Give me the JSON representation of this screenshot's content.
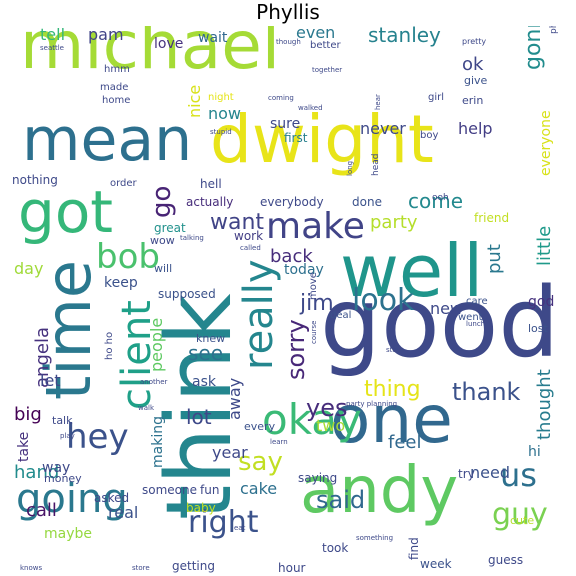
{
  "title": "Phyllis",
  "words": [
    {
      "text": "michael",
      "color": "#a5db36"
    },
    {
      "text": "dwight",
      "color": "#e8e419"
    },
    {
      "text": "think",
      "color": "#24868e"
    },
    {
      "text": "good",
      "color": "#3e4989"
    },
    {
      "text": "andy",
      "color": "#5ec962"
    },
    {
      "text": "well",
      "color": "#1f958b"
    },
    {
      "text": "one",
      "color": "#31688e"
    },
    {
      "text": "mean",
      "color": "#2d708e"
    },
    {
      "text": "time",
      "color": "#2a788e"
    },
    {
      "text": "got",
      "color": "#35b779"
    },
    {
      "text": "okay",
      "color": "#3aba76"
    },
    {
      "text": "going",
      "color": "#2a788e"
    },
    {
      "text": "hey",
      "color": "#3b528b"
    },
    {
      "text": "client",
      "color": "#1fa088"
    },
    {
      "text": "really",
      "color": "#24868e"
    },
    {
      "text": "make",
      "color": "#414487"
    },
    {
      "text": "bob",
      "color": "#4ac16d"
    },
    {
      "text": "look",
      "color": "#2c728e"
    },
    {
      "text": "us",
      "color": "#2d708e"
    },
    {
      "text": "guy",
      "color": "#7ad151"
    },
    {
      "text": "right",
      "color": "#3b528b"
    },
    {
      "text": "said",
      "color": "#31688e"
    },
    {
      "text": "say",
      "color": "#c2df23"
    },
    {
      "text": "yes",
      "color": "#472d7b"
    },
    {
      "text": "sorry",
      "color": "#482878"
    },
    {
      "text": "thank",
      "color": "#3b528b"
    },
    {
      "text": "thing",
      "color": "#e5e419"
    },
    {
      "text": "jim",
      "color": "#3e4989"
    },
    {
      "text": "want",
      "color": "#414487"
    },
    {
      "text": "stanley",
      "color": "#26828e"
    },
    {
      "text": "gonna",
      "color": "#228c8d"
    },
    {
      "text": "go",
      "color": "#482475"
    },
    {
      "text": "come",
      "color": "#23898e"
    },
    {
      "text": "party",
      "color": "#b5de2b"
    },
    {
      "text": "little",
      "color": "#1f9a8a"
    },
    {
      "text": "thought",
      "color": "#287c8e"
    },
    {
      "text": "never",
      "color": "#3e4989"
    },
    {
      "text": "help",
      "color": "#433e85"
    },
    {
      "text": "back",
      "color": "#472d7b"
    },
    {
      "text": "put",
      "color": "#2a788e"
    },
    {
      "text": "angela",
      "color": "#46327e"
    },
    {
      "text": "see",
      "color": "#2c728e"
    },
    {
      "text": "let",
      "color": "#3e4989"
    },
    {
      "text": "big",
      "color": "#440154"
    },
    {
      "text": "hand",
      "color": "#228c8d"
    },
    {
      "text": "lot",
      "color": "#3e4989"
    },
    {
      "text": "call",
      "color": "#481467"
    },
    {
      "text": "feel",
      "color": "#31688e"
    },
    {
      "text": "need",
      "color": "#3b528b"
    },
    {
      "text": "year",
      "color": "#3e4989"
    },
    {
      "text": "cake",
      "color": "#2d708e"
    },
    {
      "text": "two",
      "color": "#a8db34"
    },
    {
      "text": "ok",
      "color": "#3f4788"
    },
    {
      "text": "even",
      "color": "#2a788e"
    },
    {
      "text": "nice",
      "color": "#d8e219"
    },
    {
      "text": "now",
      "color": "#25858e"
    },
    {
      "text": "pam",
      "color": "#414487"
    },
    {
      "text": "tell",
      "color": "#35b779"
    },
    {
      "text": "love",
      "color": "#46327e"
    },
    {
      "text": "wait",
      "color": "#31688e"
    },
    {
      "text": "sure",
      "color": "#3e4989"
    },
    {
      "text": "first",
      "color": "#277f8e"
    },
    {
      "text": "people",
      "color": "#5ec962"
    },
    {
      "text": "today",
      "color": "#2d708e"
    },
    {
      "text": "keep",
      "color": "#3b528b"
    },
    {
      "text": "day",
      "color": "#a0da39"
    },
    {
      "text": "new",
      "color": "#3e4989"
    },
    {
      "text": "god",
      "color": "#46327e"
    },
    {
      "text": "everyone",
      "color": "#d8e219"
    },
    {
      "text": "real",
      "color": "#3b528b"
    },
    {
      "text": "maybe",
      "color": "#95d840"
    },
    {
      "text": "hi",
      "color": "#2d708e"
    },
    {
      "text": "take",
      "color": "#46327e"
    },
    {
      "text": "way",
      "color": "#3e4989"
    },
    {
      "text": "ask",
      "color": "#3b528b"
    },
    {
      "text": "making",
      "color": "#2c728e"
    },
    {
      "text": "away",
      "color": "#3e4989"
    },
    {
      "text": "nothing",
      "color": "#3e4989"
    },
    {
      "text": "hell",
      "color": "#3e4989"
    },
    {
      "text": "actually",
      "color": "#472d7b"
    },
    {
      "text": "great",
      "color": "#21918c"
    },
    {
      "text": "everybody",
      "color": "#3e4989"
    },
    {
      "text": "work",
      "color": "#433e85"
    },
    {
      "text": "done",
      "color": "#3b528b"
    },
    {
      "text": "friend",
      "color": "#c2df23"
    },
    {
      "text": "hour",
      "color": "#3e4989"
    },
    {
      "text": "getting",
      "color": "#3e4989"
    },
    {
      "text": "week",
      "color": "#3b528b"
    },
    {
      "text": "guess",
      "color": "#3e4989"
    },
    {
      "text": "find",
      "color": "#3e4989"
    },
    {
      "text": "took",
      "color": "#3e4989"
    },
    {
      "text": "saying",
      "color": "#3e4989"
    },
    {
      "text": "try",
      "color": "#3e4989"
    },
    {
      "text": "fun",
      "color": "#3e4989"
    },
    {
      "text": "someone",
      "color": "#3e4989"
    },
    {
      "text": "baby",
      "color": "#c2df23"
    },
    {
      "text": "asked",
      "color": "#3e4989"
    },
    {
      "text": "money",
      "color": "#3e4989"
    },
    {
      "text": "talk",
      "color": "#3e4989"
    },
    {
      "text": "supposed",
      "color": "#3b528b"
    },
    {
      "text": "knew",
      "color": "#3b528b"
    },
    {
      "text": "will",
      "color": "#3b528b"
    },
    {
      "text": "wow",
      "color": "#3e4989"
    },
    {
      "text": "move",
      "color": "#3e4989"
    },
    {
      "text": "deal",
      "color": "#3b528b"
    },
    {
      "text": "went",
      "color": "#3b528b"
    },
    {
      "text": "care",
      "color": "#3b528b"
    },
    {
      "text": "lost",
      "color": "#3b528b"
    },
    {
      "text": "cute",
      "color": "#b5de2b"
    },
    {
      "text": "every",
      "color": "#3b528b"
    },
    {
      "text": "order",
      "color": "#3e4989"
    },
    {
      "text": "made",
      "color": "#3e4989"
    },
    {
      "text": "home",
      "color": "#3e4989"
    },
    {
      "text": "hmm",
      "color": "#3e4989"
    },
    {
      "text": "night",
      "color": "#e5e419"
    },
    {
      "text": "give",
      "color": "#3b528b"
    },
    {
      "text": "erin",
      "color": "#3e4989"
    },
    {
      "text": "girl",
      "color": "#3e4989"
    },
    {
      "text": "boy",
      "color": "#3e4989"
    },
    {
      "text": "ho ho",
      "color": "#3e4989"
    },
    {
      "text": "better",
      "color": "#3e4989"
    },
    {
      "text": "pretty",
      "color": "#3e4989"
    },
    {
      "text": "phone",
      "color": "#3e4989"
    },
    {
      "text": "though",
      "color": "#3e4989"
    },
    {
      "text": "together",
      "color": "#3e4989"
    },
    {
      "text": "coming",
      "color": "#3e4989"
    },
    {
      "text": "walked",
      "color": "#3e4989"
    },
    {
      "text": "stupid",
      "color": "#3e4989"
    },
    {
      "text": "long",
      "color": "#3e4989"
    },
    {
      "text": "head",
      "color": "#3e4989"
    },
    {
      "text": "ooh",
      "color": "#3e4989"
    },
    {
      "text": "called",
      "color": "#3e4989"
    },
    {
      "text": "talking",
      "color": "#3e4989"
    },
    {
      "text": "course",
      "color": "#3e4989"
    },
    {
      "text": "lunch",
      "color": "#3e4989"
    },
    {
      "text": "another",
      "color": "#3e4989"
    },
    {
      "text": "stay",
      "color": "#3e4989"
    },
    {
      "text": "walk",
      "color": "#3e4989"
    },
    {
      "text": "party planning",
      "color": "#3e4989"
    },
    {
      "text": "learn",
      "color": "#3e4989"
    },
    {
      "text": "something",
      "color": "#3e4989"
    },
    {
      "text": "eat",
      "color": "#3e4989"
    },
    {
      "text": "store",
      "color": "#3e4989"
    },
    {
      "text": "knows",
      "color": "#3e4989"
    },
    {
      "text": "seattle",
      "color": "#3e4989"
    },
    {
      "text": "play",
      "color": "#3e4989"
    },
    {
      "text": "hear",
      "color": "#3e4989"
    }
  ]
}
